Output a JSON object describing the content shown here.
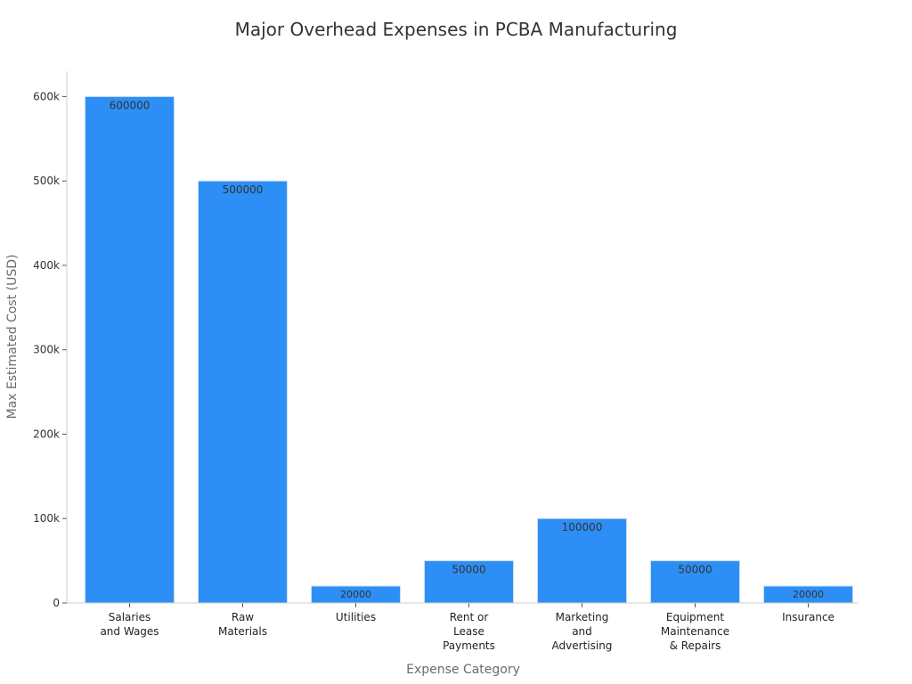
{
  "chart_data": {
    "type": "bar",
    "title": "Major Overhead Expenses in PCBA Manufacturing",
    "xlabel": "Expense Category",
    "ylabel": "Max Estimated Cost (USD)",
    "categories": [
      [
        "Salaries",
        "and Wages"
      ],
      [
        "Raw",
        "Materials"
      ],
      [
        "Utilities"
      ],
      [
        "Rent or",
        "Lease",
        "Payments"
      ],
      [
        "Marketing",
        "and",
        "Advertising"
      ],
      [
        "Equipment",
        "Maintenance",
        "& Repairs"
      ],
      [
        "Insurance"
      ]
    ],
    "values": [
      600000,
      500000,
      20000,
      50000,
      100000,
      50000,
      20000
    ],
    "data_labels": [
      "600000",
      "500000",
      "20000",
      "50000",
      "100000",
      "50000",
      "20000"
    ],
    "ylim": [
      0,
      630000
    ],
    "yticks": [
      0,
      100000,
      200000,
      300000,
      400000,
      500000,
      600000
    ],
    "ytick_labels": [
      "0",
      "100k",
      "200k",
      "300k",
      "400k",
      "500k",
      "600k"
    ],
    "grid": false,
    "bar_color": "#2d8ff5",
    "bar_edge_color": "#c9dff5"
  }
}
